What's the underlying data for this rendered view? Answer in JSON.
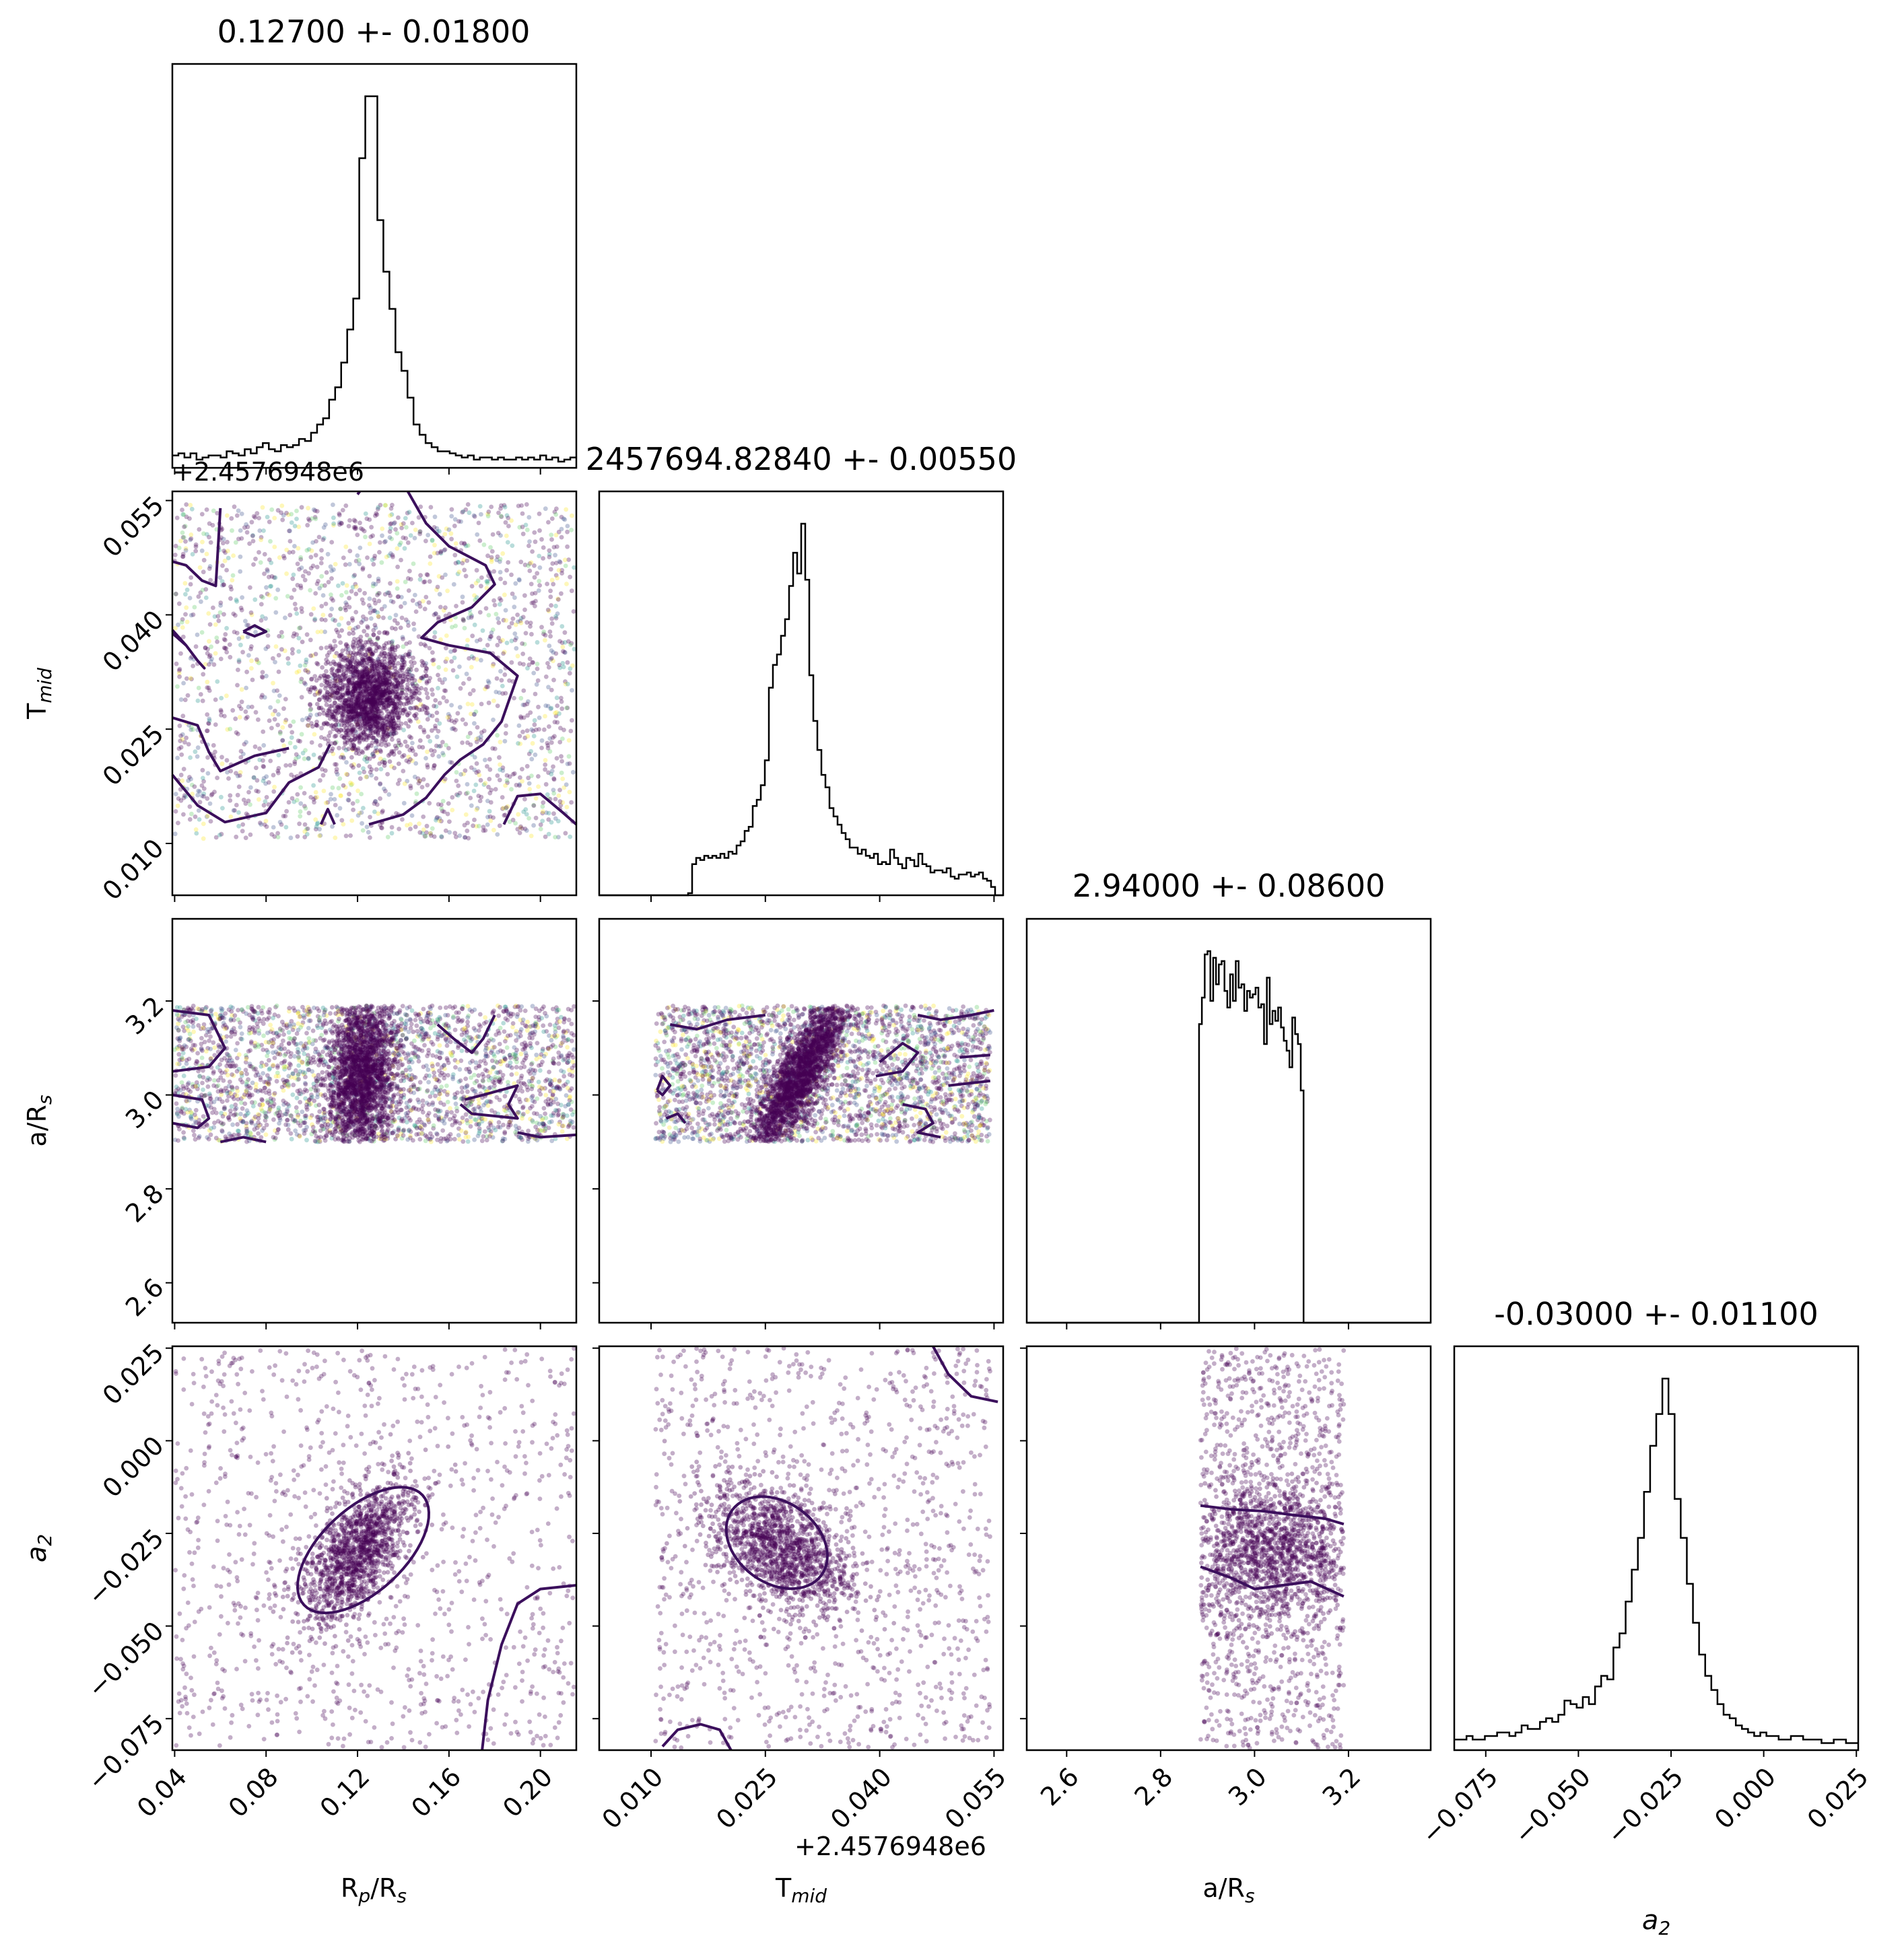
{
  "chart_data": {
    "type": "corner",
    "parameters": [
      {
        "key": "rp",
        "label": "R",
        "sub": "p",
        "suffix": "/R",
        "suffix_sub": "s",
        "offset_text": ""
      },
      {
        "key": "tmid",
        "label": "T",
        "sub": "mid",
        "suffix": "",
        "suffix_sub": "",
        "offset_text": "+2.4576948e6"
      },
      {
        "key": "ars",
        "label": "a/R",
        "sub": "s",
        "suffix": "",
        "suffix_sub": "",
        "offset_text": ""
      },
      {
        "key": "a2",
        "label": "a",
        "sub": "2",
        "suffix": "",
        "suffix_sub": "",
        "offset_text": ""
      }
    ],
    "titles": [
      "0.12700 +- 0.01800",
      "2457694.82840 +- 0.00550",
      "2.94000 +- 0.08600",
      "-0.03000 +- 0.01100"
    ],
    "ranges": [
      [
        0.039,
        0.2157
      ],
      [
        0.0032,
        0.0562
      ],
      [
        2.515,
        3.375
      ],
      [
        -0.0835,
        0.0255
      ]
    ],
    "ticks": [
      [
        0.04,
        0.08,
        0.12,
        0.16,
        0.2
      ],
      [
        0.01,
        0.025,
        0.04,
        0.055
      ],
      [
        2.6,
        2.8,
        3.0,
        3.2
      ],
      [
        -0.075,
        -0.05,
        -0.025,
        0.0,
        0.025
      ]
    ],
    "tick_labels": [
      [
        "0.04",
        "0.08",
        "0.12",
        "0.16",
        "0.20"
      ],
      [
        "0.010",
        "0.025",
        "0.040",
        "0.055"
      ],
      [
        "2.6",
        "2.8",
        "3.0",
        "3.2"
      ],
      [
        "−0.075",
        "−0.050",
        "−0.025",
        "0.000",
        "0.025"
      ]
    ],
    "y_offset_text": "+2.4576948e6",
    "histograms": [
      {
        "bin_edges_range": [
          0.039,
          0.2157
        ],
        "counts": [
          6,
          7,
          5,
          7,
          4,
          5,
          6,
          6,
          5,
          8,
          7,
          6,
          9,
          7,
          10,
          12,
          9,
          8,
          11,
          10,
          11,
          14,
          13,
          17,
          21,
          24,
          33,
          39,
          51,
          67,
          82,
          150,
          180,
          180,
          120,
          95,
          77,
          56,
          47,
          34,
          21,
          16,
          12,
          10,
          8,
          8,
          7,
          6,
          5,
          6,
          4,
          5,
          5,
          4,
          5,
          4,
          4,
          5,
          4,
          5,
          4,
          6,
          4,
          5,
          3,
          4,
          5
        ]
      },
      {
        "bin_edges_range": [
          0.0032,
          0.0562
        ],
        "counts": [
          0,
          0,
          0,
          0,
          0,
          0,
          0,
          0,
          0,
          0,
          0,
          0,
          0,
          0,
          0,
          0,
          0,
          0,
          0,
          0,
          0,
          0,
          1,
          15,
          18,
          17,
          19,
          18,
          19,
          18,
          20,
          18,
          21,
          20,
          24,
          26,
          31,
          33,
          43,
          46,
          53,
          65,
          100,
          111,
          116,
          125,
          133,
          149,
          165,
          155,
          179,
          152,
          106,
          84,
          70,
          58,
          52,
          42,
          38,
          34,
          30,
          27,
          23,
          23,
          20,
          22,
          19,
          18,
          20,
          15,
          16,
          15,
          22,
          18,
          15,
          13,
          18,
          17,
          14,
          20,
          15,
          14,
          11,
          12,
          12,
          11,
          13,
          9,
          8,
          10,
          10,
          11,
          9,
          10,
          11,
          8,
          7,
          4,
          0,
          0
        ]
      },
      {
        "bin_edges_range": [
          2.515,
          3.375
        ],
        "counts": [
          0,
          0,
          0,
          0,
          0,
          0,
          0,
          0,
          0,
          0,
          0,
          0,
          0,
          0,
          0,
          0,
          0,
          0,
          0,
          0,
          0,
          0,
          0,
          0,
          0,
          0,
          0,
          0,
          0,
          0,
          0,
          0,
          0,
          0,
          0,
          0,
          0,
          0,
          0,
          0,
          0,
          0,
          0,
          0,
          0,
          0,
          0,
          0,
          0,
          0,
          0,
          0,
          0,
          0,
          0,
          0,
          0,
          0,
          0,
          0,
          0,
          90,
          98,
          111,
          112,
          97,
          110,
          102,
          108,
          109,
          100,
          95,
          105,
          97,
          109,
          101,
          102,
          94,
          100,
          98,
          99,
          101,
          95,
          96,
          84,
          104,
          90,
          94,
          91,
          95,
          89,
          85,
          82,
          77,
          92,
          87,
          84,
          70,
          0,
          0,
          0,
          0,
          0,
          0,
          0,
          0,
          0,
          0,
          0,
          0,
          0,
          0,
          0,
          0,
          0,
          0,
          0,
          0,
          0,
          0,
          0,
          0,
          0,
          0,
          0,
          0,
          0,
          0,
          0,
          0,
          0,
          0,
          0,
          0,
          0,
          0,
          0,
          0,
          0,
          0,
          0,
          0,
          0
        ]
      },
      {
        "bin_edges_range": [
          -0.0835,
          0.0255
        ],
        "counts": [
          3,
          3,
          4,
          3,
          3,
          4,
          4,
          5,
          5,
          4,
          5,
          7,
          6,
          6,
          8,
          9,
          8,
          10,
          14,
          13,
          12,
          15,
          13,
          18,
          21,
          20,
          29,
          33,
          42,
          51,
          60,
          73,
          86,
          95,
          105,
          95,
          71,
          60,
          47,
          36,
          27,
          21,
          17,
          13,
          10,
          9,
          7,
          6,
          5,
          4,
          5,
          4,
          4,
          3,
          3,
          4,
          4,
          3,
          3,
          3,
          2,
          2,
          3,
          3,
          2,
          2
        ]
      }
    ],
    "scatter_meta": [
      {
        "pair": [
          "rp",
          "tmid"
        ],
        "center": [
          0.125,
          0.0295
        ],
        "spread": [
          0.01,
          0.0035
        ],
        "corr": 0.0,
        "n_core": 1700,
        "n_bg": 2200,
        "colored_bg": true
      },
      {
        "pair": [
          "rp",
          "ars"
        ],
        "center": [
          0.122,
          3.04
        ],
        "spread": [
          0.0075,
          0.09
        ],
        "corr": 0.15,
        "n_core": 2200,
        "n_bg": 2600,
        "colored_bg": true
      },
      {
        "pair": [
          "tmid",
          "ars"
        ],
        "center": [
          0.0295,
          3.04
        ],
        "spread": [
          0.0032,
          0.09
        ],
        "corr": 0.85,
        "n_core": 2200,
        "n_bg": 2600,
        "colored_bg": true
      },
      {
        "pair": [
          "rp",
          "a2"
        ],
        "center": [
          0.12,
          -0.03
        ],
        "spread": [
          0.012,
          0.0095
        ],
        "corr": 0.62,
        "n_core": 1300,
        "n_bg": 1000,
        "colored_bg": false
      },
      {
        "pair": [
          "tmid",
          "a2"
        ],
        "center": [
          0.027,
          -0.029
        ],
        "spread": [
          0.0045,
          0.0085
        ],
        "corr": -0.45,
        "n_core": 1300,
        "n_bg": 1100,
        "colored_bg": false
      },
      {
        "pair": [
          "ars",
          "a2"
        ],
        "center": [
          3.04,
          -0.03
        ],
        "spread": [
          0.09,
          0.0095
        ],
        "corr": 0.0,
        "n_core": 1300,
        "n_bg": 1100,
        "colored_bg": false
      }
    ],
    "colors": {
      "point": "#440154",
      "contour": "#3b0f5c",
      "hist": "#000000",
      "palette": [
        "#440154",
        "#3b528b",
        "#21918c",
        "#5ec962",
        "#fde725"
      ]
    }
  }
}
